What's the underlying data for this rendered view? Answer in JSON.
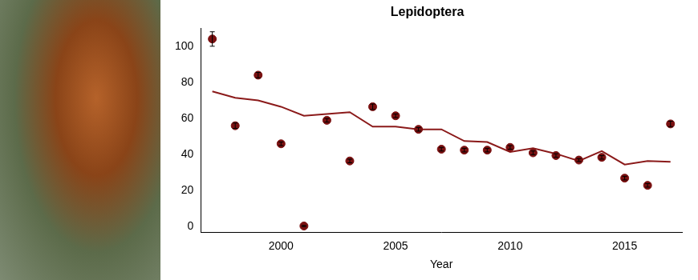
{
  "chart_data": {
    "type": "scatter",
    "title": "Lepidoptera",
    "x_label": "Year",
    "x": [
      1997,
      1998,
      1999,
      2000,
      2001,
      2002,
      2003,
      2004,
      2005,
      2006,
      2007,
      2008,
      2009,
      2010,
      2011,
      2012,
      2013,
      2014,
      2015,
      2016,
      2017
    ],
    "series": [
      {
        "type": "scatter",
        "color": "#7a1010",
        "marker": "circle",
        "values": [
          104,
          56,
          84,
          46,
          0.5,
          59,
          36.5,
          66.5,
          61.5,
          54,
          43,
          42.5,
          42.5,
          44,
          41,
          39.5,
          37,
          38.5,
          27,
          23,
          57
        ],
        "errors": [
          4,
          1.5,
          1.5,
          1,
          0.3,
          1,
          1,
          1.5,
          1,
          1,
          1,
          1,
          1,
          1,
          1,
          1,
          0.8,
          1,
          1,
          1,
          1.5
        ]
      },
      {
        "type": "line",
        "color": "#8b1a1a",
        "line_style": "solid",
        "values": [
          75,
          71.5,
          70,
          66.5,
          61.5,
          62.5,
          63.5,
          55.5,
          55.5,
          54,
          54,
          47.5,
          47,
          41.5,
          43.5,
          40.5,
          36.5,
          42,
          34.5,
          36.5,
          36
        ]
      }
    ],
    "xlim": [
      1996.5,
      2017.5
    ],
    "xticks": [
      2000,
      2005,
      2010,
      2015
    ],
    "ylim": [
      -3,
      110
    ],
    "yticks": [
      0,
      20,
      40,
      60,
      80,
      100
    ],
    "grid": false
  }
}
